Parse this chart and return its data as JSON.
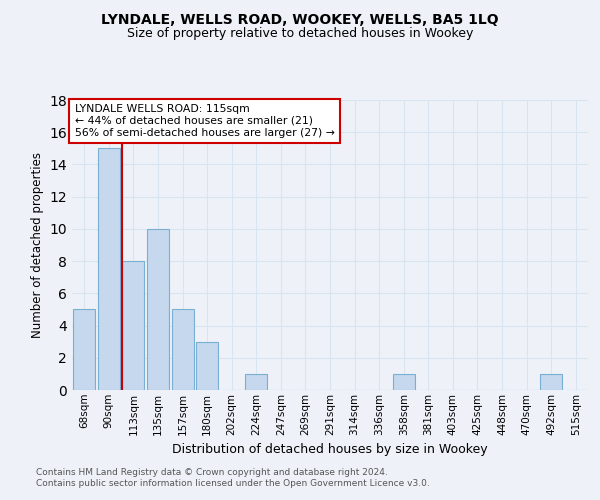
{
  "title": "LYNDALE, WELLS ROAD, WOOKEY, WELLS, BA5 1LQ",
  "subtitle": "Size of property relative to detached houses in Wookey",
  "xlabel": "Distribution of detached houses by size in Wookey",
  "ylabel": "Number of detached properties",
  "categories": [
    "68sqm",
    "90sqm",
    "113sqm",
    "135sqm",
    "157sqm",
    "180sqm",
    "202sqm",
    "224sqm",
    "247sqm",
    "269sqm",
    "291sqm",
    "314sqm",
    "336sqm",
    "358sqm",
    "381sqm",
    "403sqm",
    "425sqm",
    "448sqm",
    "470sqm",
    "492sqm",
    "515sqm"
  ],
  "values": [
    5,
    15,
    8,
    10,
    5,
    3,
    0,
    1,
    0,
    0,
    0,
    0,
    0,
    1,
    0,
    0,
    0,
    0,
    0,
    1,
    0
  ],
  "bar_color": "#c5d8ed",
  "bar_edge_color": "#7aafd4",
  "grid_color": "#d8e4f0",
  "vline_color": "#cc0000",
  "annotation_text": "LYNDALE WELLS ROAD: 115sqm\n← 44% of detached houses are smaller (21)\n56% of semi-detached houses are larger (27) →",
  "annotation_box_color": "#ffffff",
  "annotation_box_edge": "#cc0000",
  "ylim": [
    0,
    18
  ],
  "yticks": [
    0,
    2,
    4,
    6,
    8,
    10,
    12,
    14,
    16,
    18
  ],
  "footer_line1": "Contains HM Land Registry data © Crown copyright and database right 2024.",
  "footer_line2": "Contains public sector information licensed under the Open Government Licence v3.0.",
  "background_color": "#eef2f8",
  "title_fontsize": 10,
  "subtitle_fontsize": 9
}
